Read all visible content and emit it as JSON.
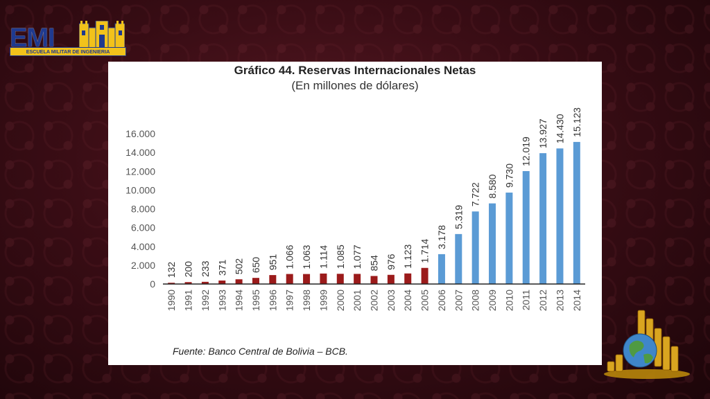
{
  "logo": {
    "letters": "EMI",
    "band_text": "ESCUELA MILITAR DE INGENIERIA",
    "colors": {
      "blue": "#1f3a8f",
      "gold": "#f2c21b"
    }
  },
  "decoration": {
    "bottom_right": "gold-coins-globe-icon"
  },
  "chart_data": {
    "type": "bar",
    "title": "Gráfico 44. Reservas Internacionales Netas",
    "subtitle": "(En millones de dólares)",
    "source": "Fuente: Banco Central de Bolivia – BCB.",
    "categories": [
      "1990",
      "1991",
      "1992",
      "1993",
      "1994",
      "1995",
      "1996",
      "1997",
      "1998",
      "1999",
      "2000",
      "2001",
      "2002",
      "2003",
      "2004",
      "2005",
      "2006",
      "2007",
      "2008",
      "2009",
      "2010",
      "2011",
      "2012",
      "2013",
      "2014"
    ],
    "values": [
      132,
      200,
      233,
      371,
      502,
      650,
      951,
      1066,
      1063,
      1114,
      1085,
      1077,
      854,
      976,
      1123,
      1714,
      3178,
      5319,
      7722,
      8580,
      9730,
      12019,
      13927,
      14430,
      15123
    ],
    "value_labels": [
      "132",
      "200",
      "233",
      "371",
      "502",
      "650",
      "951",
      "1.066",
      "1.063",
      "1.114",
      "1.085",
      "1.077",
      "854",
      "976",
      "1.123",
      "1.714",
      "3.178",
      "5.319",
      "7.722",
      "8.580",
      "9.730",
      "12.019",
      "13.927",
      "14.430",
      "15.123"
    ],
    "yticks": [
      0,
      2000,
      4000,
      6000,
      8000,
      10000,
      12000,
      14000,
      16000
    ],
    "ytick_labels": [
      "0",
      "2.000",
      "4.000",
      "6.000",
      "8.000",
      "10.000",
      "12.000",
      "14.000",
      "16.000"
    ],
    "ylim": [
      0,
      16000
    ],
    "grid": false,
    "legend": "none",
    "colors": {
      "pre_2006": "#9b1b1b",
      "from_2006": "#5b9bd5"
    }
  }
}
